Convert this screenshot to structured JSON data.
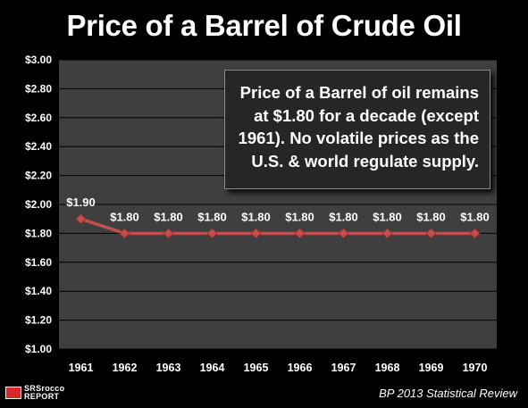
{
  "chart_data": {
    "type": "line",
    "title": "Price of a Barrel of Crude Oil",
    "xlabel": "",
    "ylabel": "",
    "categories": [
      "1961",
      "1962",
      "1963",
      "1964",
      "1965",
      "1966",
      "1967",
      "1968",
      "1969",
      "1970"
    ],
    "series": [
      {
        "values": [
          1.9,
          1.8,
          1.8,
          1.8,
          1.8,
          1.8,
          1.8,
          1.8,
          1.8,
          1.8
        ],
        "labels": [
          "$1.90",
          "$1.80",
          "$1.80",
          "$1.80",
          "$1.80",
          "$1.80",
          "$1.80",
          "$1.80",
          "$1.80",
          "$1.80"
        ],
        "color": "#c0504d",
        "marker": "diamond"
      }
    ],
    "ylim": [
      1.0,
      3.0
    ],
    "yticks": [
      1.0,
      1.2,
      1.4,
      1.6,
      1.8,
      2.0,
      2.2,
      2.4,
      2.6,
      2.8,
      3.0
    ],
    "ytick_labels": [
      "$1.00",
      "$1.20",
      "$1.40",
      "$1.60",
      "$1.80",
      "$2.00",
      "$2.20",
      "$2.40",
      "$2.60",
      "$2.80",
      "$3.00"
    ],
    "grid": true,
    "plot_background": "#3f3f3f",
    "annotation": "Price of a Barrel of oil remains at $1.80 for a decade (except 1961).  No volatile prices as the U.S. & world regulate supply."
  },
  "annotation_lines": [
    "Price of a Barrel of oil remains",
    "at $1.80 for a decade (except",
    "1961).  No volatile prices as the",
    "U.S. & world regulate supply."
  ],
  "logo": {
    "line1": "SRSrocco",
    "line2": "REPORT",
    "icon": "srsrocco-logo-icon"
  },
  "source": "BP 2013 Statistical Review",
  "colors": {
    "background": "#000000",
    "plot": "#3f3f3f",
    "line": "#c0504d",
    "text": "#ffffff"
  }
}
